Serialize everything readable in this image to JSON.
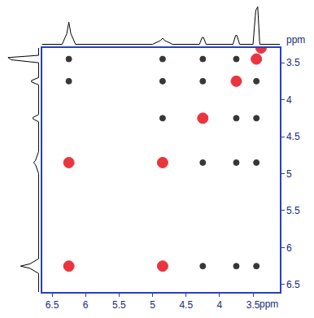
{
  "chart_data": {
    "type": "scatter",
    "xlabel": "ppm",
    "ylabel": "ppm",
    "xlim": [
      6.65,
      3.1
    ],
    "ylim": [
      6.6,
      3.3
    ],
    "xticks": [
      6.5,
      6.0,
      5.5,
      5.0,
      4.5,
      4.0,
      3.5
    ],
    "yticks": [
      3.5,
      4.0,
      4.5,
      5.0,
      5.5,
      6.0,
      6.5
    ],
    "grid": false,
    "series": [
      {
        "color": "#e8202a",
        "marker": "circle",
        "x": [
          6.25,
          4.85,
          4.85,
          6.25,
          4.25,
          3.75,
          3.45,
          3.38
        ],
        "y": [
          6.25,
          4.85,
          6.25,
          4.85,
          4.25,
          3.75,
          3.45,
          3.3
        ]
      },
      {
        "color": "#222222",
        "marker": "circle",
        "x": [
          6.25,
          4.85,
          4.25,
          3.75,
          6.25,
          4.85,
          4.25,
          3.45,
          4.85,
          3.75,
          3.45,
          4.25,
          3.75,
          3.45,
          4.25,
          3.75,
          3.45
        ],
        "y": [
          3.45,
          3.45,
          3.45,
          3.45,
          3.75,
          3.75,
          3.75,
          3.75,
          4.25,
          4.25,
          4.25,
          4.85,
          4.85,
          4.85,
          6.25,
          6.25,
          6.25
        ]
      }
    ],
    "projection": {
      "color": "#000000",
      "lim": [
        0,
        1.05
      ],
      "ppm": [
        6.65,
        6.35,
        6.28,
        6.25,
        6.22,
        6.15,
        5.0,
        4.88,
        4.85,
        4.82,
        4.7,
        4.3,
        4.26,
        4.24,
        4.2,
        3.8,
        3.76,
        3.74,
        3.7,
        3.5,
        3.46,
        3.43,
        3.4,
        3.1
      ],
      "values": [
        0.02,
        0.02,
        0.3,
        0.6,
        0.3,
        0.02,
        0.02,
        0.12,
        0.18,
        0.12,
        0.02,
        0.02,
        0.2,
        0.2,
        0.02,
        0.02,
        0.25,
        0.25,
        0.02,
        0.02,
        0.9,
        1.0,
        0.02,
        0.02
      ]
    },
    "tick_labels": true
  }
}
